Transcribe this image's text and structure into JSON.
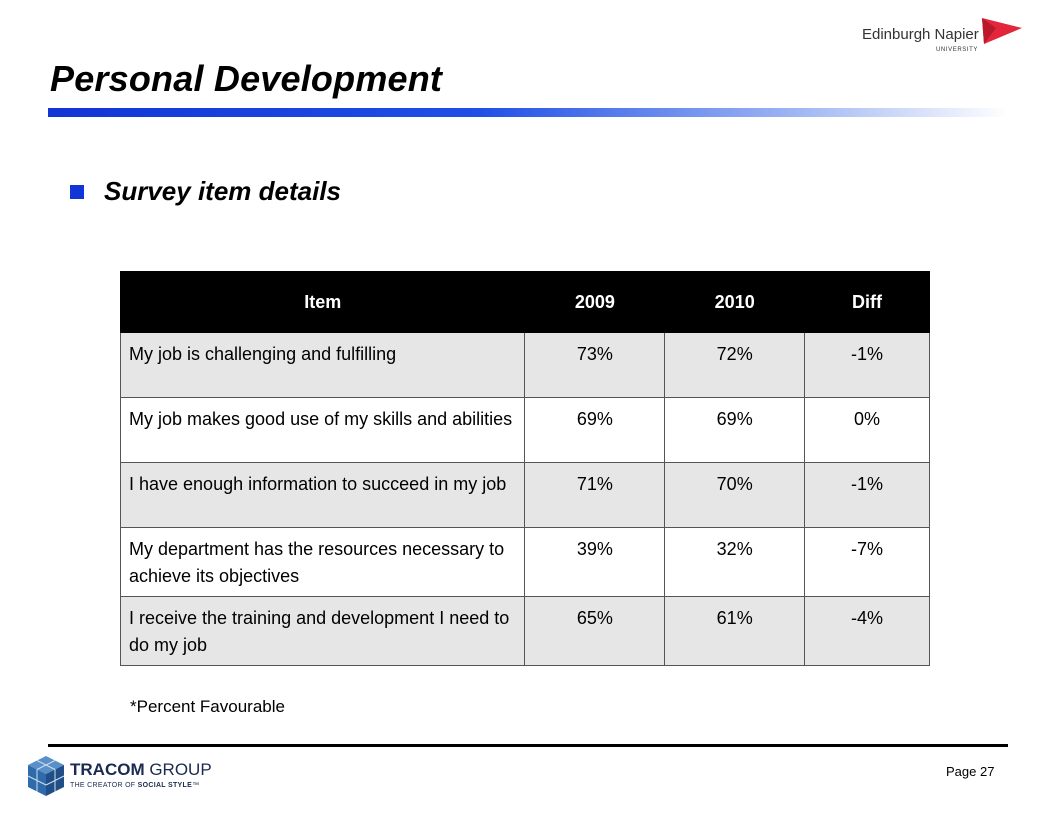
{
  "header": {
    "title": "Personal Development",
    "logo": {
      "name": "Edinburgh Napier",
      "sub": "UNIVERSITY",
      "accent_color": "#e3263b"
    }
  },
  "accent_color": "#1235d6",
  "section": {
    "heading": "Survey item details",
    "bullet_icon": "square-bullet-icon"
  },
  "table": {
    "headers": [
      "Item",
      "2009",
      "2010",
      "Diff"
    ],
    "rows": [
      {
        "item": "My job is challenging and fulfilling",
        "y2009": "73%",
        "y2010": "72%",
        "diff": "-1%"
      },
      {
        "item": "My job makes good use of my skills and abilities",
        "y2009": "69%",
        "y2010": "69%",
        "diff": "0%"
      },
      {
        "item": "I have enough information to succeed in my job",
        "y2009": "71%",
        "y2010": "70%",
        "diff": "-1%"
      },
      {
        "item": "My department has the resources necessary to achieve its objectives",
        "y2009": "39%",
        "y2010": "32%",
        "diff": "-7%"
      },
      {
        "item": "I receive the training and development I need to do my job",
        "y2009": "65%",
        "y2010": "61%",
        "diff": "-4%"
      }
    ]
  },
  "footnote": "*Percent Favourable",
  "footer": {
    "logo": {
      "brand_bold": "TRACOM",
      "brand_light": " GROUP",
      "tag_prefix": "THE CREATOR OF ",
      "tag_strong": "SOCIAL STYLE",
      "tag_suffix": "™",
      "icon": "cube-logo-icon"
    },
    "page_label": "Page 27"
  }
}
